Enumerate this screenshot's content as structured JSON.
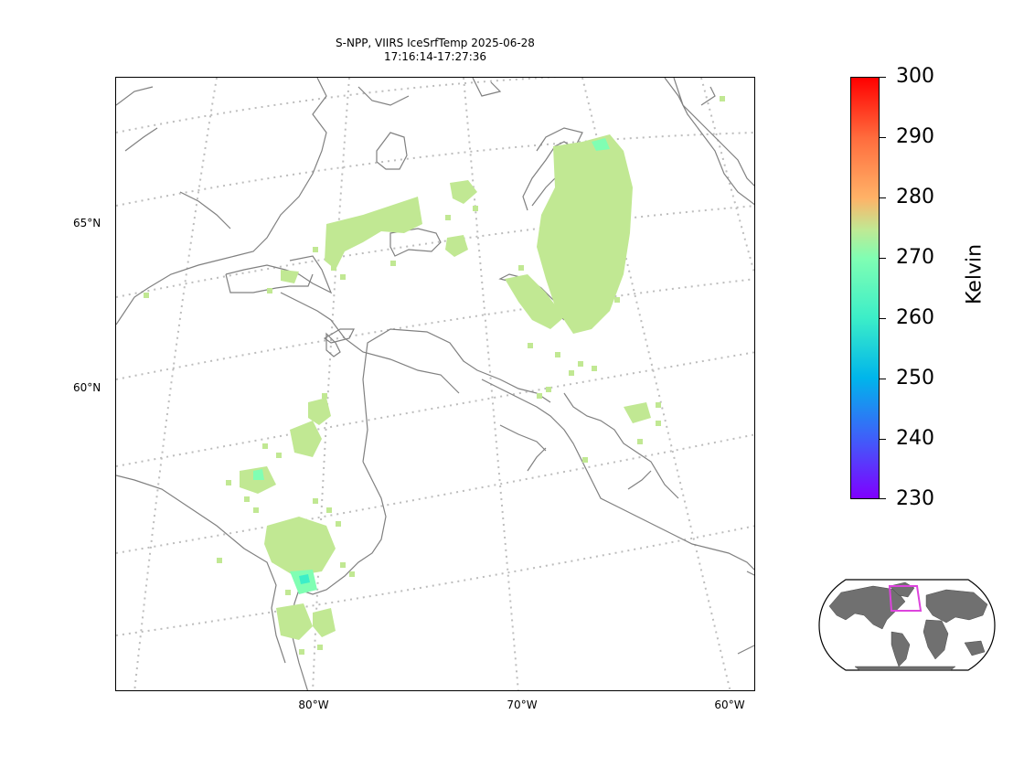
{
  "title": {
    "line1": "S-NPP, VIIRS IceSrfTemp 2025-06-28",
    "line2": "17:16:14-17:27:36"
  },
  "map": {
    "lat_labels": [
      "65°N",
      "60°N"
    ],
    "lon_labels": [
      "80°W",
      "70°W",
      "60°W"
    ],
    "gridlines": "dotted",
    "coastline_color": "#808080",
    "gridline_color": "#bdbdbd"
  },
  "colorbar": {
    "label": "Kelvin",
    "ticks": [
      "300",
      "290",
      "280",
      "270",
      "260",
      "250",
      "240",
      "230"
    ],
    "min": 230,
    "max": 300,
    "colormap": "rainbow"
  },
  "data_colors": {
    "dominant": "#c1e893",
    "cool": "#80feb3",
    "cold": "#3ceec8"
  },
  "inset": {
    "land_color": "#707070",
    "region_box_color": "#dd44dd"
  }
}
